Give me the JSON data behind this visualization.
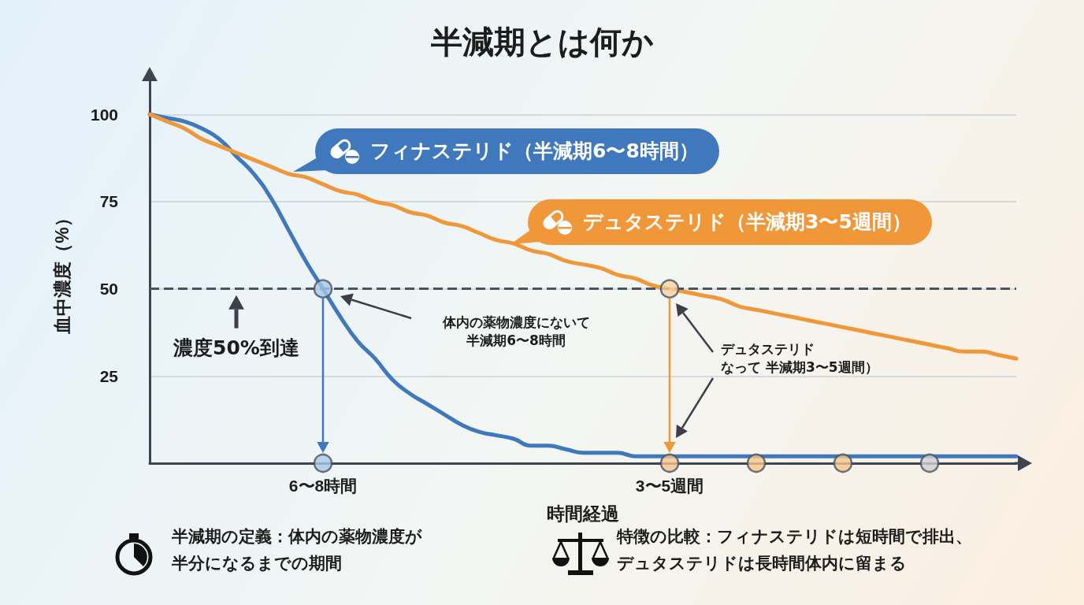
{
  "chart_data": {
    "type": "line",
    "title": "半減期とは何か",
    "ylabel": "血中濃度（%）",
    "xlabel": "時間経過",
    "categories": [
      null,
      null,
      null,
      null,
      null,
      null,
      null,
      null,
      null,
      null,
      "6〜8時間",
      null,
      null,
      null,
      null,
      null,
      null,
      null,
      null,
      null,
      null,
      null,
      null,
      null,
      null,
      null,
      null,
      null,
      null,
      null,
      "3〜5週間",
      null,
      null,
      null,
      null,
      null,
      null,
      null,
      null,
      null,
      null,
      null,
      null,
      null,
      null,
      null,
      null,
      null,
      null,
      null,
      null
    ],
    "series": [
      {
        "name": "フィナステリド（半減期6〜8時間）",
        "color": "#3f78bd",
        "values": [
          100,
          99,
          98,
          96,
          93,
          88,
          83,
          76,
          67,
          58,
          50,
          42,
          35,
          30,
          24,
          20,
          17,
          14,
          11,
          9,
          8,
          7,
          5,
          5,
          4,
          3,
          3,
          3,
          2,
          2,
          2,
          2,
          2,
          2,
          2,
          2,
          2,
          2,
          2,
          2,
          2,
          2,
          2,
          2,
          2,
          2,
          2,
          2,
          2,
          2,
          2
        ]
      },
      {
        "name": "デュタステリド（半減期3〜5週間）",
        "color": "#f0973a",
        "values": [
          100,
          98,
          96,
          93,
          91,
          89,
          87,
          85,
          83,
          82,
          80,
          78,
          77,
          75,
          74,
          72,
          71,
          69,
          68,
          66,
          64,
          63,
          61,
          60,
          58,
          57,
          56,
          54,
          53,
          51,
          50,
          49,
          48,
          47,
          45,
          44,
          43,
          42,
          41,
          40,
          39,
          38,
          37,
          36,
          35,
          34,
          33,
          32,
          32,
          31,
          30
        ]
      },
      {
        "type": "scatter",
        "marker": "circle",
        "values": [
          null,
          null,
          null,
          null,
          null,
          null,
          null,
          null,
          null,
          null,
          50,
          null,
          null,
          null,
          null,
          null,
          null,
          null,
          null,
          null,
          null,
          null,
          null,
          null,
          null,
          null,
          null,
          null,
          null,
          null,
          50,
          null,
          null,
          null,
          null,
          null,
          null,
          null,
          null,
          null,
          null,
          null,
          null,
          null,
          null,
          null,
          null,
          null,
          null,
          null,
          null
        ],
        "colors": [
          null,
          null,
          null,
          null,
          null,
          null,
          null,
          null,
          null,
          null,
          "#a9c8e8",
          null,
          null,
          null,
          null,
          null,
          null,
          null,
          null,
          null,
          null,
          null,
          null,
          null,
          null,
          null,
          null,
          null,
          null,
          null,
          "#f7d3a4",
          null,
          null,
          null,
          null,
          null,
          null,
          null,
          null,
          null,
          null,
          null,
          null,
          null,
          null,
          null,
          null,
          null,
          null,
          null,
          null
        ]
      },
      {
        "type": "scatter",
        "marker": "circle",
        "values": [
          null,
          null,
          null,
          null,
          null,
          null,
          null,
          null,
          null,
          null,
          0,
          null,
          null,
          null,
          null,
          null,
          null,
          null,
          null,
          null,
          null,
          null,
          null,
          null,
          null,
          null,
          null,
          null,
          null,
          null,
          0,
          null,
          null,
          null,
          null,
          0,
          null,
          null,
          null,
          null,
          0,
          null,
          null,
          null,
          null,
          0,
          null,
          null,
          null,
          null,
          null
        ],
        "colors": [
          null,
          null,
          null,
          null,
          null,
          null,
          null,
          null,
          null,
          null,
          "#a9c8e8",
          null,
          null,
          null,
          null,
          null,
          null,
          null,
          null,
          null,
          null,
          null,
          null,
          null,
          null,
          null,
          null,
          null,
          null,
          null,
          "#f5c58d",
          null,
          null,
          null,
          null,
          "#f5c58d",
          null,
          null,
          null,
          null,
          "#f5c58d",
          null,
          null,
          null,
          null,
          "#cfd1d3",
          null,
          null,
          null,
          null,
          null
        ]
      }
    ],
    "ylim": [
      0,
      110
    ],
    "yticks": [
      25,
      50,
      75,
      100
    ],
    "grid": "y",
    "legend": "top",
    "line_style": "solid",
    "ref_lines": [
      {
        "axis": "y",
        "value": 50,
        "color": "#4a5260",
        "line_style": "dashed"
      }
    ],
    "annotations": [
      {
        "text": "濃度50%到達",
        "y": 50
      },
      "体内の薬物濃度にないて半減期6〜8時間",
      "デュタステリドなって 半減期3〜5週間）",
      "半減期の定義：体内の薬物濃度が半分になるまでの期間",
      "特徴の比較：フィナステリドは短時間で排出、デュタステリドは長時間体内に留まる"
    ]
  }
}
